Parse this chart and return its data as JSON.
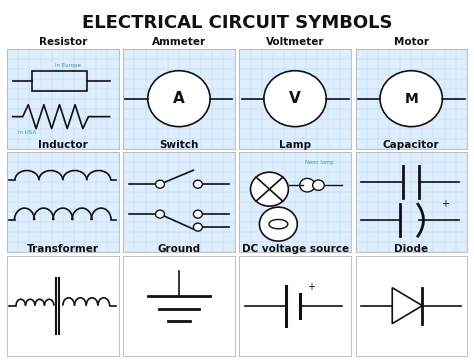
{
  "title": "ELECTRICAL CIRCUIT SYMBOLS",
  "title_fontsize": 13,
  "title_fontweight": "bold",
  "bg_color": "#ffffff",
  "cell_bg": "#ddeeff",
  "grid_color": "#b8d4e8",
  "symbol_color": "#111111",
  "label_color": "#111111",
  "teal_color": "#2aa48a",
  "labels": [
    [
      "Resistor",
      "Ammeter",
      "Voltmeter",
      "Motor"
    ],
    [
      "Inductor",
      "Switch",
      "Lamp",
      "Capacitor"
    ],
    [
      "Transformer",
      "Ground",
      "DC voltage source",
      "Diode"
    ]
  ],
  "label_fontsize": 7.5,
  "annotation_fontsize": 5
}
